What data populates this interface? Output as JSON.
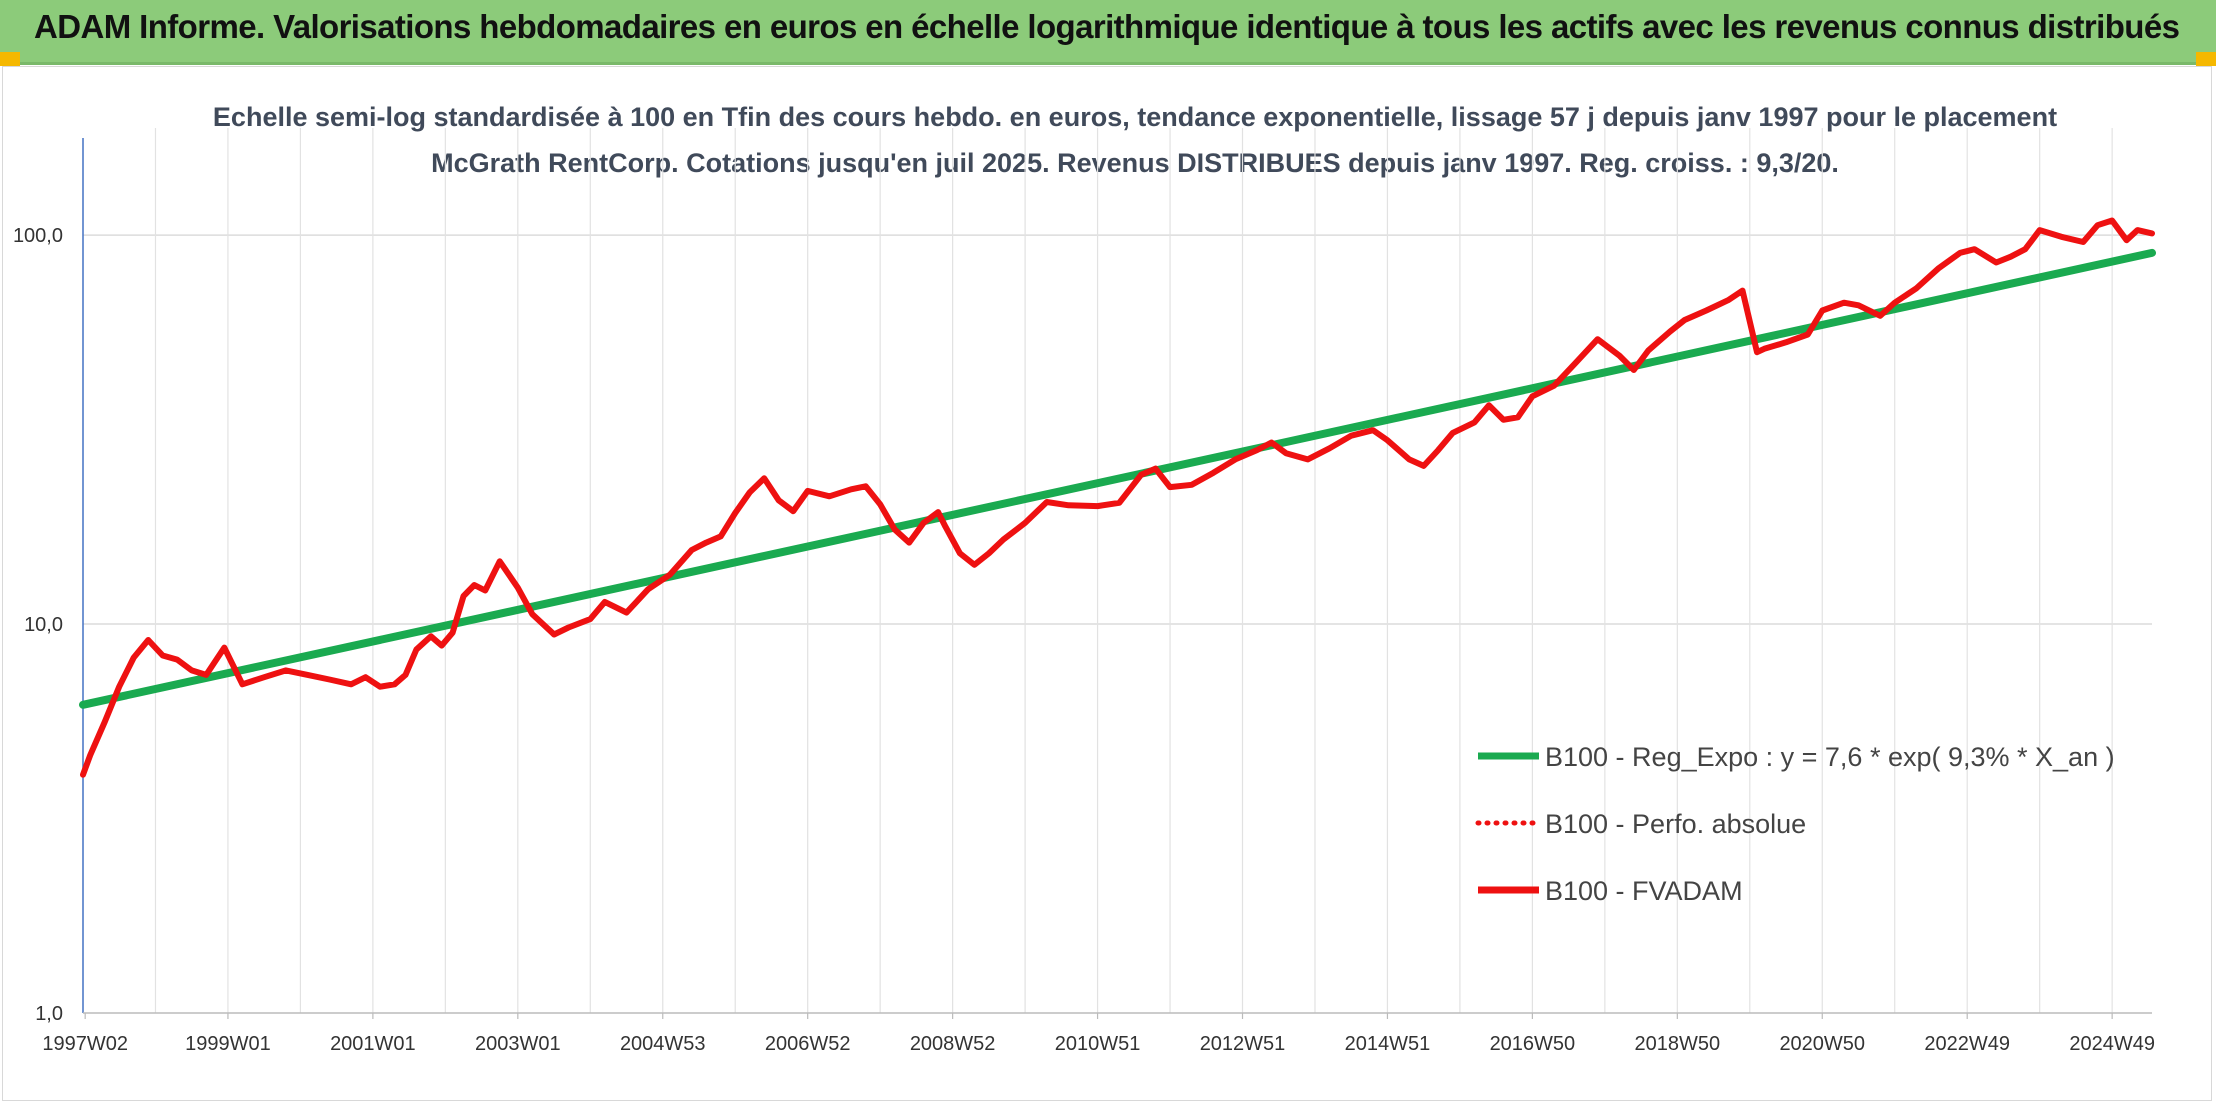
{
  "banner": {
    "title": "ADAM Informe. Valorisations hebdomadaires en euros en échelle logarithmique identique à tous les actifs avec les revenus connus distribués",
    "color": "#8ccb7a"
  },
  "chart_data": {
    "type": "line",
    "title": "Echelle semi-log standardisée à 100 en Tfin des cours hebdo. en euros, tendance exponentielle, lissage 57 j depuis janv 1997 pour le placement McGrath RentCorp. Cotations jusqu'en juil 2025. Revenus DISTRIBUES depuis janv 1997. Reg. croiss. : 9,3/20.",
    "yscale": "log",
    "ylim": [
      1,
      200
    ],
    "xlim": [
      1997.0,
      2025.55
    ],
    "grid": true,
    "legend_position": "lower-right",
    "y_ticks": [
      {
        "value": 1,
        "label": "1,0"
      },
      {
        "value": 10,
        "label": "10,0"
      },
      {
        "value": 100,
        "label": "100,0"
      }
    ],
    "x_ticks": [
      {
        "value": 1997.03,
        "label": "1997W02"
      },
      {
        "value": 1999.0,
        "label": "1999W01"
      },
      {
        "value": 2001.0,
        "label": "2001W01"
      },
      {
        "value": 2003.0,
        "label": "2003W01"
      },
      {
        "value": 2005.0,
        "label": "2004W53"
      },
      {
        "value": 2007.0,
        "label": "2006W52"
      },
      {
        "value": 2009.0,
        "label": "2008W52"
      },
      {
        "value": 2011.0,
        "label": "2010W51"
      },
      {
        "value": 2013.0,
        "label": "2012W51"
      },
      {
        "value": 2015.0,
        "label": "2014W51"
      },
      {
        "value": 2017.0,
        "label": "2016W50"
      },
      {
        "value": 2019.0,
        "label": "2018W50"
      },
      {
        "value": 2021.0,
        "label": "2020W50"
      },
      {
        "value": 2023.0,
        "label": "2022W49"
      },
      {
        "value": 2025.0,
        "label": "2024W49"
      }
    ],
    "series": [
      {
        "name": "B100 - Reg_Expo : y = 7,6 * exp( 9,3% *  X_an )",
        "color": "#1aaa50",
        "style": "solid",
        "x": [
          1997.0,
          2025.55
        ],
        "y": [
          6.2,
          90
        ]
      },
      {
        "name": "B100 - Perfo. absolue",
        "color": "#ee1111",
        "style": "dotted",
        "x": [],
        "y": []
      },
      {
        "name": "B100 - FVADAM",
        "color": "#ee1111",
        "style": "solid",
        "x": [
          1997.0,
          1997.1,
          1997.3,
          1997.5,
          1997.7,
          1997.9,
          1998.1,
          1998.3,
          1998.5,
          1998.7,
          1998.95,
          1999.2,
          1999.5,
          1999.8,
          2000.1,
          2000.4,
          2000.7,
          2000.9,
          2001.1,
          2001.3,
          2001.45,
          2001.6,
          2001.8,
          2001.95,
          2002.1,
          2002.25,
          2002.4,
          2002.55,
          2002.75,
          2003.0,
          2003.2,
          2003.5,
          2003.7,
          2004.0,
          2004.2,
          2004.5,
          2004.8,
          2005.1,
          2005.4,
          2005.6,
          2005.8,
          2006.0,
          2006.2,
          2006.4,
          2006.6,
          2006.8,
          2007.0,
          2007.3,
          2007.6,
          2007.8,
          2008.0,
          2008.2,
          2008.4,
          2008.6,
          2008.8,
          2008.9,
          2009.1,
          2009.3,
          2009.5,
          2009.7,
          2010.0,
          2010.3,
          2010.6,
          2011.0,
          2011.3,
          2011.6,
          2011.8,
          2012.0,
          2012.3,
          2012.6,
          2012.9,
          2013.2,
          2013.4,
          2013.6,
          2013.9,
          2014.2,
          2014.5,
          2014.8,
          2015.0,
          2015.3,
          2015.5,
          2015.7,
          2015.9,
          2016.2,
          2016.4,
          2016.6,
          2016.8,
          2017.0,
          2017.3,
          2017.6,
          2017.9,
          2018.2,
          2018.4,
          2018.6,
          2018.9,
          2019.1,
          2019.4,
          2019.7,
          2019.9,
          2020.1,
          2020.2,
          2020.5,
          2020.8,
          2021.0,
          2021.3,
          2021.5,
          2021.8,
          2022.0,
          2022.3,
          2022.6,
          2022.9,
          2023.1,
          2023.4,
          2023.6,
          2023.8,
          2024.0,
          2024.3,
          2024.6,
          2024.8,
          2025.0,
          2025.2,
          2025.35,
          2025.55
        ],
        "y": [
          4.1,
          4.6,
          5.6,
          6.9,
          8.2,
          9.1,
          8.3,
          8.1,
          7.6,
          7.4,
          8.7,
          7.0,
          7.3,
          7.6,
          7.4,
          7.2,
          7.0,
          7.3,
          6.9,
          7.0,
          7.4,
          8.6,
          9.3,
          8.8,
          9.5,
          11.8,
          12.6,
          12.2,
          14.5,
          12.4,
          10.6,
          9.4,
          9.8,
          10.3,
          11.4,
          10.7,
          12.3,
          13.4,
          15.5,
          16.2,
          16.8,
          19.3,
          21.8,
          23.7,
          20.8,
          19.5,
          22.0,
          21.3,
          22.2,
          22.6,
          20.3,
          17.5,
          16.2,
          18.2,
          19.4,
          17.8,
          15.2,
          14.2,
          15.2,
          16.5,
          18.2,
          20.6,
          20.2,
          20.1,
          20.5,
          24.2,
          25.1,
          22.5,
          22.8,
          24.5,
          26.5,
          28.0,
          29.3,
          27.5,
          26.5,
          28.3,
          30.5,
          31.5,
          29.7,
          26.5,
          25.5,
          28.0,
          31.0,
          33.0,
          36.5,
          33.5,
          34.0,
          38.5,
          41.0,
          47.0,
          54.0,
          49.0,
          45.0,
          50.5,
          56.5,
          60.5,
          64.0,
          68.0,
          72.0,
          50.0,
          51.0,
          53.0,
          55.5,
          64.0,
          67.0,
          66.0,
          62.0,
          67.0,
          73.0,
          82.0,
          90.0,
          92.0,
          85.0,
          88.0,
          92.0,
          103.0,
          99.0,
          96.0,
          106.0,
          109.0,
          97.0,
          103.0,
          101.0
        ]
      }
    ]
  }
}
